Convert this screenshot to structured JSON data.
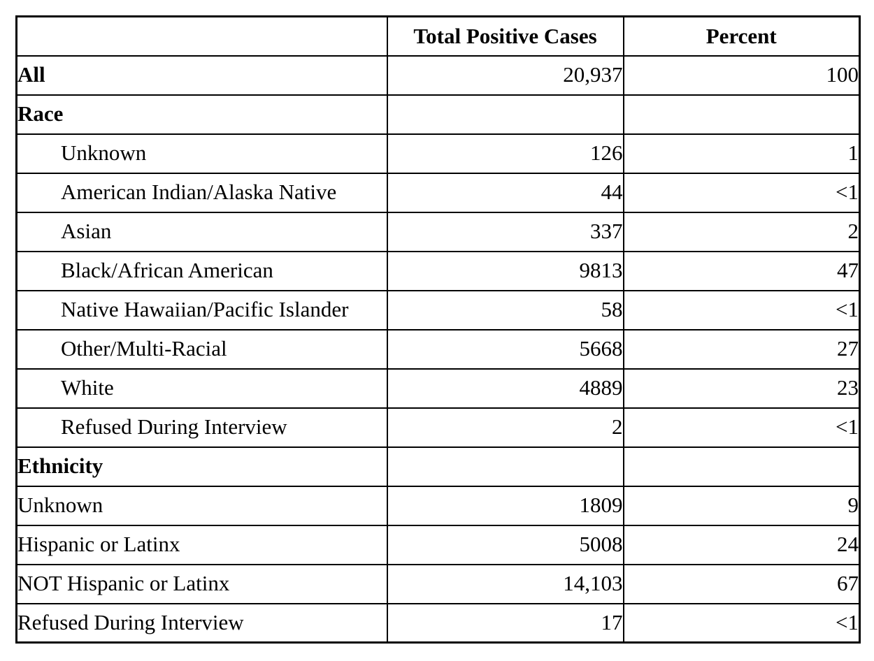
{
  "table": {
    "headers": [
      "",
      "Total Positive Cases",
      "Percent"
    ],
    "rows": [
      {
        "label": "All",
        "total": "20,937",
        "percent": "100"
      },
      {
        "label": "Race",
        "total": "",
        "percent": ""
      },
      {
        "label": "Unknown",
        "total": "126",
        "percent": "1"
      },
      {
        "label": "American Indian/Alaska Native",
        "total": "44",
        "percent": "<1"
      },
      {
        "label": "Asian",
        "total": "337",
        "percent": "2"
      },
      {
        "label": "Black/African American",
        "total": "9813",
        "percent": "47"
      },
      {
        "label": "Native Hawaiian/Pacific Islander",
        "total": "58",
        "percent": "<1"
      },
      {
        "label": "Other/Multi-Racial",
        "total": "5668",
        "percent": "27"
      },
      {
        "label": "White",
        "total": "4889",
        "percent": "23"
      },
      {
        "label": "Refused During Interview",
        "total": "2",
        "percent": "<1"
      },
      {
        "label": "Ethnicity",
        "total": "",
        "percent": ""
      },
      {
        "label": "Unknown",
        "total": "1809",
        "percent": "9"
      },
      {
        "label": "Hispanic or Latinx",
        "total": "5008",
        "percent": "24"
      },
      {
        "label": "NOT Hispanic or Latinx",
        "total": "14,103",
        "percent": "67"
      },
      {
        "label": "Refused During Interview",
        "total": "17",
        "percent": "<1"
      }
    ]
  },
  "colors": {
    "text": "#000000",
    "border": "#000000",
    "background": "#ffffff"
  },
  "chart_data": {
    "type": "table",
    "title": "",
    "columns": [
      "Category",
      "Total Positive Cases",
      "Percent"
    ],
    "sections": [
      {
        "name": "All",
        "rows": [
          {
            "category": "All",
            "total_positive_cases": 20937,
            "percent": "100"
          }
        ]
      },
      {
        "name": "Race",
        "rows": [
          {
            "category": "Unknown",
            "total_positive_cases": 126,
            "percent": "1"
          },
          {
            "category": "American Indian/Alaska Native",
            "total_positive_cases": 44,
            "percent": "<1"
          },
          {
            "category": "Asian",
            "total_positive_cases": 337,
            "percent": "2"
          },
          {
            "category": "Black/African American",
            "total_positive_cases": 9813,
            "percent": "47"
          },
          {
            "category": "Native Hawaiian/Pacific Islander",
            "total_positive_cases": 58,
            "percent": "<1"
          },
          {
            "category": "Other/Multi-Racial",
            "total_positive_cases": 5668,
            "percent": "27"
          },
          {
            "category": "White",
            "total_positive_cases": 4889,
            "percent": "23"
          },
          {
            "category": "Refused During Interview",
            "total_positive_cases": 2,
            "percent": "<1"
          }
        ]
      },
      {
        "name": "Ethnicity",
        "rows": [
          {
            "category": "Unknown",
            "total_positive_cases": 1809,
            "percent": "9"
          },
          {
            "category": "Hispanic or Latinx",
            "total_positive_cases": 5008,
            "percent": "24"
          },
          {
            "category": "NOT Hispanic or Latinx",
            "total_positive_cases": 14103,
            "percent": "67"
          },
          {
            "category": "Refused During Interview",
            "total_positive_cases": 17,
            "percent": "<1"
          }
        ]
      }
    ]
  }
}
